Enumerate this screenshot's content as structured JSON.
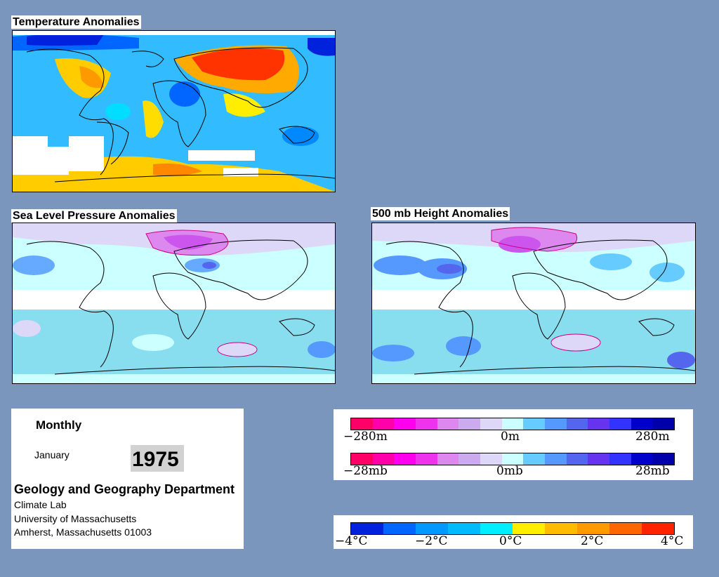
{
  "panels": {
    "temperature": {
      "title": "Temperature Anomalies"
    },
    "slp": {
      "title": "Sea Level Pressure Anomalies"
    },
    "height": {
      "title": "500 mb Height Anomalies"
    }
  },
  "info": {
    "period": "Monthly",
    "month": "January",
    "year": "1975",
    "dept": "Geology and Geography Department",
    "lab": "Climate Lab",
    "univ": "University of Massachusetts",
    "address": "Amherst, Massachusetts 01003"
  },
  "legend_height": {
    "min": "−280m",
    "mid": "0m",
    "max": "280m"
  },
  "legend_pressure": {
    "min": "−28mb",
    "mid": "0mb",
    "max": "28mb"
  },
  "legend_temp": {
    "t1": "−4°C",
    "t2": "−2°C",
    "t3": "0°C",
    "t4": "2°C",
    "t5": "4°C"
  },
  "colors": {
    "background": "#7b96bd",
    "anomaly_scale": [
      "#ff0066",
      "#ff00aa",
      "#ff00ee",
      "#ee33ee",
      "#dd88ee",
      "#ccaaee",
      "#ddd8f8",
      "#ccffff",
      "#66ccff",
      "#5599ff",
      "#5566ee",
      "#6633ee",
      "#3333ff",
      "#0000cc",
      "#0000aa"
    ],
    "temperature_scale": [
      "#0022dd",
      "#0066ff",
      "#0099ff",
      "#00bbff",
      "#00eeff",
      "#ffee00",
      "#ffbb00",
      "#ff9900",
      "#ff6600",
      "#ff2200"
    ]
  }
}
